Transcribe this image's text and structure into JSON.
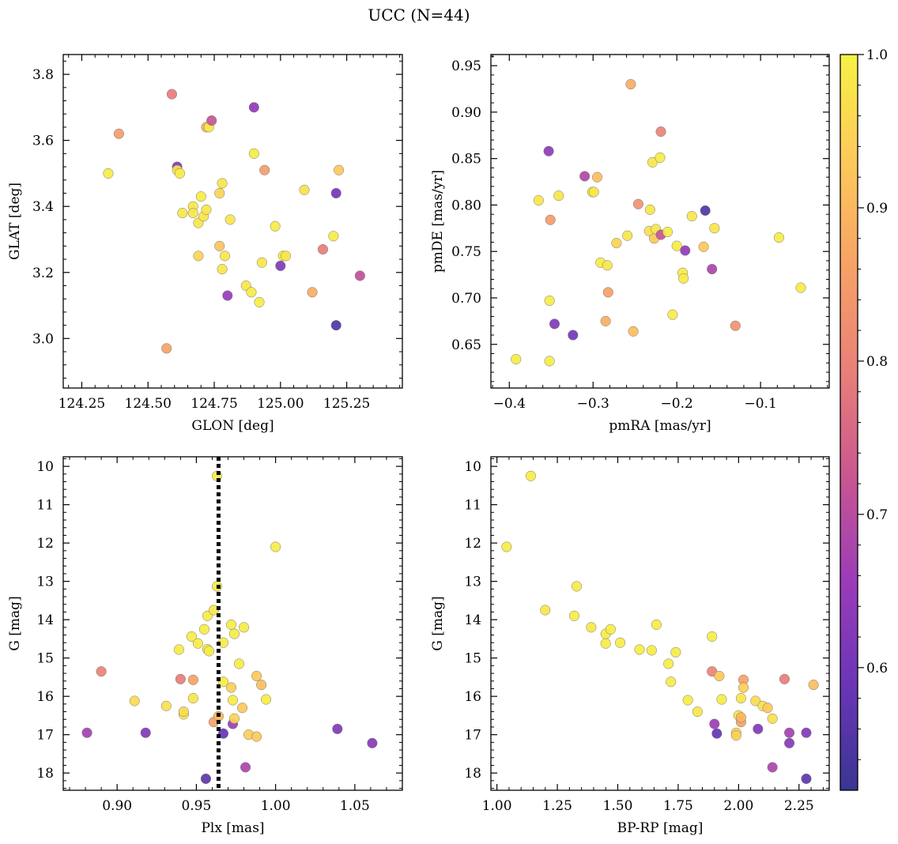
{
  "suptitle": "UCC (N=44)",
  "colorbar": {
    "range": [
      0.52,
      1.0
    ],
    "ticks": [
      0.6,
      0.7,
      0.8,
      0.9,
      1.0
    ],
    "tick_labels": [
      "0.6",
      "0.7",
      "0.8",
      "0.9",
      "1.0"
    ],
    "colormap": "plasma (lightened)",
    "stops": [
      "#3a3591",
      "#6a35b8",
      "#9b3cb8",
      "#c9578f",
      "#e98078",
      "#f7a266",
      "#fdc95a",
      "#f5f244"
    ]
  },
  "chart_data": [
    {
      "type": "scatter",
      "xlabel": "GLON [deg]",
      "ylabel": "GLAT [deg]",
      "xlim": [
        124.18,
        125.46
      ],
      "ylim": [
        2.85,
        3.86
      ],
      "yinvert": false,
      "xticks": [
        124.25,
        124.5,
        124.75,
        125.0,
        125.25
      ],
      "xtick_labels": [
        "124.25",
        "124.50",
        "124.75",
        "125.00",
        "125.25"
      ],
      "yticks": [
        3.0,
        3.2,
        3.4,
        3.6,
        3.8
      ],
      "ytick_labels": [
        "3.0",
        "3.2",
        "3.4",
        "3.6",
        "3.8"
      ],
      "points": [
        {
          "x": 124.35,
          "y": 3.5,
          "c": 0.99
        },
        {
          "x": 124.39,
          "y": 3.62,
          "c": 0.85
        },
        {
          "x": 124.57,
          "y": 2.97,
          "c": 0.86
        },
        {
          "x": 124.59,
          "y": 3.74,
          "c": 0.79
        },
        {
          "x": 124.61,
          "y": 3.52,
          "c": 0.62
        },
        {
          "x": 124.61,
          "y": 3.51,
          "c": 0.98
        },
        {
          "x": 124.62,
          "y": 3.5,
          "c": 0.99
        },
        {
          "x": 124.63,
          "y": 3.38,
          "c": 0.98
        },
        {
          "x": 124.67,
          "y": 3.4,
          "c": 0.98
        },
        {
          "x": 124.67,
          "y": 3.38,
          "c": 0.98
        },
        {
          "x": 124.69,
          "y": 3.35,
          "c": 0.98
        },
        {
          "x": 124.69,
          "y": 3.25,
          "c": 0.95
        },
        {
          "x": 124.7,
          "y": 3.43,
          "c": 0.99
        },
        {
          "x": 124.71,
          "y": 3.37,
          "c": 0.98
        },
        {
          "x": 124.72,
          "y": 3.39,
          "c": 0.98
        },
        {
          "x": 124.72,
          "y": 3.64,
          "c": 0.89
        },
        {
          "x": 124.73,
          "y": 3.64,
          "c": 0.99
        },
        {
          "x": 124.74,
          "y": 3.66,
          "c": 0.72
        },
        {
          "x": 124.77,
          "y": 3.28,
          "c": 0.92
        },
        {
          "x": 124.77,
          "y": 3.44,
          "c": 0.95
        },
        {
          "x": 124.78,
          "y": 3.21,
          "c": 0.98
        },
        {
          "x": 124.78,
          "y": 3.47,
          "c": 0.98
        },
        {
          "x": 124.79,
          "y": 3.25,
          "c": 0.98
        },
        {
          "x": 124.8,
          "y": 3.13,
          "c": 0.65
        },
        {
          "x": 124.81,
          "y": 3.36,
          "c": 0.98
        },
        {
          "x": 124.87,
          "y": 3.16,
          "c": 0.98
        },
        {
          "x": 124.89,
          "y": 3.14,
          "c": 0.99
        },
        {
          "x": 124.9,
          "y": 3.7,
          "c": 0.64
        },
        {
          "x": 124.9,
          "y": 3.56,
          "c": 0.99
        },
        {
          "x": 124.92,
          "y": 3.11,
          "c": 0.99
        },
        {
          "x": 124.93,
          "y": 3.23,
          "c": 0.98
        },
        {
          "x": 124.94,
          "y": 3.51,
          "c": 0.85
        },
        {
          "x": 124.98,
          "y": 3.34,
          "c": 0.99
        },
        {
          "x": 125.0,
          "y": 3.22,
          "c": 0.62
        },
        {
          "x": 125.01,
          "y": 3.25,
          "c": 0.99
        },
        {
          "x": 125.02,
          "y": 3.25,
          "c": 0.98
        },
        {
          "x": 125.09,
          "y": 3.45,
          "c": 0.97
        },
        {
          "x": 125.12,
          "y": 3.14,
          "c": 0.88
        },
        {
          "x": 125.16,
          "y": 3.27,
          "c": 0.79
        },
        {
          "x": 125.2,
          "y": 3.31,
          "c": 0.99
        },
        {
          "x": 125.21,
          "y": 3.44,
          "c": 0.6
        },
        {
          "x": 125.21,
          "y": 3.04,
          "c": 0.55
        },
        {
          "x": 125.22,
          "y": 3.51,
          "c": 0.93
        },
        {
          "x": 125.3,
          "y": 3.19,
          "c": 0.71
        }
      ]
    },
    {
      "type": "scatter",
      "xlabel": "pmRA [mas/yr]",
      "ylabel": "pmDE [mas/yr]",
      "xlim": [
        -0.422,
        -0.018
      ],
      "ylim": [
        0.603,
        0.962
      ],
      "yinvert": false,
      "xticks": [
        -0.4,
        -0.3,
        -0.2,
        -0.1
      ],
      "xtick_labels": [
        "−0.4",
        "−0.3",
        "−0.2",
        "−0.1"
      ],
      "yticks": [
        0.65,
        0.7,
        0.75,
        0.8,
        0.85,
        0.9,
        0.95
      ],
      "ytick_labels": [
        "0.65",
        "0.70",
        "0.75",
        "0.80",
        "0.85",
        "0.90",
        "0.95"
      ],
      "points": [
        {
          "x": -0.392,
          "y": 0.634,
          "c": 0.99
        },
        {
          "x": -0.365,
          "y": 0.805,
          "c": 0.98
        },
        {
          "x": -0.353,
          "y": 0.858,
          "c": 0.64
        },
        {
          "x": -0.352,
          "y": 0.697,
          "c": 0.99
        },
        {
          "x": -0.352,
          "y": 0.632,
          "c": 0.99
        },
        {
          "x": -0.351,
          "y": 0.784,
          "c": 0.85
        },
        {
          "x": -0.346,
          "y": 0.672,
          "c": 0.62
        },
        {
          "x": -0.341,
          "y": 0.81,
          "c": 0.98
        },
        {
          "x": -0.324,
          "y": 0.66,
          "c": 0.6
        },
        {
          "x": -0.31,
          "y": 0.831,
          "c": 0.69
        },
        {
          "x": -0.301,
          "y": 0.814,
          "c": 0.99
        },
        {
          "x": -0.299,
          "y": 0.814,
          "c": 0.98
        },
        {
          "x": -0.295,
          "y": 0.83,
          "c": 0.91
        },
        {
          "x": -0.291,
          "y": 0.738,
          "c": 0.99
        },
        {
          "x": -0.285,
          "y": 0.675,
          "c": 0.88
        },
        {
          "x": -0.283,
          "y": 0.735,
          "c": 0.98
        },
        {
          "x": -0.282,
          "y": 0.706,
          "c": 0.86
        },
        {
          "x": -0.272,
          "y": 0.759,
          "c": 0.95
        },
        {
          "x": -0.259,
          "y": 0.767,
          "c": 0.98
        },
        {
          "x": -0.255,
          "y": 0.93,
          "c": 0.88
        },
        {
          "x": -0.252,
          "y": 0.664,
          "c": 0.91
        },
        {
          "x": -0.246,
          "y": 0.801,
          "c": 0.83
        },
        {
          "x": -0.233,
          "y": 0.772,
          "c": 0.97
        },
        {
          "x": -0.232,
          "y": 0.795,
          "c": 0.98
        },
        {
          "x": -0.229,
          "y": 0.846,
          "c": 0.98
        },
        {
          "x": -0.227,
          "y": 0.764,
          "c": 0.93
        },
        {
          "x": -0.225,
          "y": 0.774,
          "c": 0.98
        },
        {
          "x": -0.22,
          "y": 0.851,
          "c": 0.99
        },
        {
          "x": -0.219,
          "y": 0.879,
          "c": 0.8
        },
        {
          "x": -0.219,
          "y": 0.768,
          "c": 0.72
        },
        {
          "x": -0.211,
          "y": 0.771,
          "c": 0.99
        },
        {
          "x": -0.205,
          "y": 0.682,
          "c": 0.99
        },
        {
          "x": -0.2,
          "y": 0.756,
          "c": 0.99
        },
        {
          "x": -0.193,
          "y": 0.727,
          "c": 0.99
        },
        {
          "x": -0.192,
          "y": 0.721,
          "c": 0.99
        },
        {
          "x": -0.19,
          "y": 0.751,
          "c": 0.64
        },
        {
          "x": -0.182,
          "y": 0.788,
          "c": 0.98
        },
        {
          "x": -0.168,
          "y": 0.755,
          "c": 0.93
        },
        {
          "x": -0.166,
          "y": 0.794,
          "c": 0.55
        },
        {
          "x": -0.158,
          "y": 0.731,
          "c": 0.68
        },
        {
          "x": -0.155,
          "y": 0.775,
          "c": 0.98
        },
        {
          "x": -0.13,
          "y": 0.67,
          "c": 0.83
        },
        {
          "x": -0.078,
          "y": 0.765,
          "c": 0.99
        },
        {
          "x": -0.052,
          "y": 0.711,
          "c": 0.99
        }
      ]
    },
    {
      "type": "scatter",
      "xlabel": "Plx [mas]",
      "ylabel": "G [mag]",
      "xlim": [
        0.866,
        1.08
      ],
      "ylim": [
        9.75,
        18.45
      ],
      "yinvert": true,
      "xticks": [
        0.9,
        0.95,
        1.0,
        1.05
      ],
      "xtick_labels": [
        "0.90",
        "0.95",
        "1.00",
        "1.05"
      ],
      "yticks": [
        10,
        11,
        12,
        13,
        14,
        15,
        16,
        17,
        18
      ],
      "ytick_labels": [
        "10",
        "11",
        "12",
        "13",
        "14",
        "15",
        "16",
        "17",
        "18"
      ],
      "vline": 0.964,
      "points": [
        {
          "x": 0.881,
          "y": 16.95,
          "c": 0.67
        },
        {
          "x": 0.89,
          "y": 15.35,
          "c": 0.8
        },
        {
          "x": 0.911,
          "y": 16.12,
          "c": 0.96
        },
        {
          "x": 0.918,
          "y": 16.95,
          "c": 0.62
        },
        {
          "x": 0.931,
          "y": 16.25,
          "c": 0.97
        },
        {
          "x": 0.939,
          "y": 14.78,
          "c": 0.99
        },
        {
          "x": 0.94,
          "y": 15.55,
          "c": 0.79
        },
        {
          "x": 0.942,
          "y": 16.47,
          "c": 0.98
        },
        {
          "x": 0.942,
          "y": 16.4,
          "c": 0.96
        },
        {
          "x": 0.947,
          "y": 14.44,
          "c": 0.99
        },
        {
          "x": 0.948,
          "y": 15.57,
          "c": 0.86
        },
        {
          "x": 0.948,
          "y": 16.05,
          "c": 0.98
        },
        {
          "x": 0.951,
          "y": 14.62,
          "c": 0.99
        },
        {
          "x": 0.955,
          "y": 14.25,
          "c": 0.99
        },
        {
          "x": 0.957,
          "y": 13.9,
          "c": 0.99
        },
        {
          "x": 0.957,
          "y": 14.77,
          "c": 0.98
        },
        {
          "x": 0.958,
          "y": 14.82,
          "c": 0.99
        },
        {
          "x": 0.956,
          "y": 18.15,
          "c": 0.57
        },
        {
          "x": 0.961,
          "y": 13.75,
          "c": 0.98
        },
        {
          "x": 0.961,
          "y": 16.67,
          "c": 0.86
        },
        {
          "x": 0.963,
          "y": 10.25,
          "c": 0.99
        },
        {
          "x": 0.963,
          "y": 13.13,
          "c": 0.99
        },
        {
          "x": 0.964,
          "y": 16.52,
          "c": 0.9
        },
        {
          "x": 0.967,
          "y": 14.6,
          "c": 0.99
        },
        {
          "x": 0.967,
          "y": 15.62,
          "c": 0.99
        },
        {
          "x": 0.967,
          "y": 16.97,
          "c": 0.58
        },
        {
          "x": 0.972,
          "y": 14.13,
          "c": 0.99
        },
        {
          "x": 0.972,
          "y": 15.77,
          "c": 0.94
        },
        {
          "x": 0.973,
          "y": 16.1,
          "c": 0.99
        },
        {
          "x": 0.973,
          "y": 16.72,
          "c": 0.66
        },
        {
          "x": 0.974,
          "y": 16.58,
          "c": 0.95
        },
        {
          "x": 0.974,
          "y": 14.37,
          "c": 0.99
        },
        {
          "x": 0.977,
          "y": 15.15,
          "c": 0.99
        },
        {
          "x": 0.979,
          "y": 16.3,
          "c": 0.93
        },
        {
          "x": 0.98,
          "y": 14.2,
          "c": 0.99
        },
        {
          "x": 0.981,
          "y": 17.85,
          "c": 0.68
        },
        {
          "x": 0.983,
          "y": 17.0,
          "c": 0.94
        },
        {
          "x": 0.988,
          "y": 15.47,
          "c": 0.93
        },
        {
          "x": 0.988,
          "y": 17.05,
          "c": 0.93
        },
        {
          "x": 0.991,
          "y": 15.7,
          "c": 0.91
        },
        {
          "x": 0.994,
          "y": 16.08,
          "c": 0.99
        },
        {
          "x": 1.0,
          "y": 12.1,
          "c": 0.99
        },
        {
          "x": 1.039,
          "y": 16.85,
          "c": 0.62
        },
        {
          "x": 1.061,
          "y": 17.22,
          "c": 0.63
        }
      ]
    },
    {
      "type": "scatter",
      "xlabel": "BP-RP [mag]",
      "ylabel": "G [mag]",
      "xlim": [
        0.975,
        2.375
      ],
      "ylim": [
        9.75,
        18.45
      ],
      "yinvert": true,
      "xticks": [
        1.0,
        1.25,
        1.5,
        1.75,
        2.0,
        2.25
      ],
      "xtick_labels": [
        "1.00",
        "1.25",
        "1.50",
        "1.75",
        "2.00",
        "2.25"
      ],
      "yticks": [
        10,
        11,
        12,
        13,
        14,
        15,
        16,
        17,
        18
      ],
      "ytick_labels": [
        "10",
        "11",
        "12",
        "13",
        "14",
        "15",
        "16",
        "17",
        "18"
      ],
      "points": [
        {
          "x": 1.04,
          "y": 12.1,
          "c": 0.99
        },
        {
          "x": 1.14,
          "y": 10.25,
          "c": 0.99
        },
        {
          "x": 1.2,
          "y": 13.75,
          "c": 0.98
        },
        {
          "x": 1.32,
          "y": 13.9,
          "c": 0.99
        },
        {
          "x": 1.33,
          "y": 13.13,
          "c": 0.99
        },
        {
          "x": 1.39,
          "y": 14.2,
          "c": 0.98
        },
        {
          "x": 1.45,
          "y": 14.37,
          "c": 0.99
        },
        {
          "x": 1.45,
          "y": 14.62,
          "c": 0.99
        },
        {
          "x": 1.47,
          "y": 14.25,
          "c": 0.99
        },
        {
          "x": 1.51,
          "y": 14.6,
          "c": 0.99
        },
        {
          "x": 1.59,
          "y": 14.78,
          "c": 0.99
        },
        {
          "x": 1.64,
          "y": 14.8,
          "c": 0.99
        },
        {
          "x": 1.66,
          "y": 14.13,
          "c": 0.99
        },
        {
          "x": 1.71,
          "y": 15.15,
          "c": 0.99
        },
        {
          "x": 1.72,
          "y": 15.62,
          "c": 0.99
        },
        {
          "x": 1.74,
          "y": 14.85,
          "c": 0.99
        },
        {
          "x": 1.79,
          "y": 16.1,
          "c": 0.99
        },
        {
          "x": 1.83,
          "y": 16.4,
          "c": 0.98
        },
        {
          "x": 1.89,
          "y": 14.44,
          "c": 0.99
        },
        {
          "x": 1.89,
          "y": 15.35,
          "c": 0.8
        },
        {
          "x": 1.9,
          "y": 16.72,
          "c": 0.66
        },
        {
          "x": 1.91,
          "y": 16.97,
          "c": 0.58
        },
        {
          "x": 1.92,
          "y": 15.47,
          "c": 0.93
        },
        {
          "x": 1.93,
          "y": 16.08,
          "c": 0.99
        },
        {
          "x": 1.99,
          "y": 16.95,
          "c": 0.95
        },
        {
          "x": 1.99,
          "y": 17.02,
          "c": 0.94
        },
        {
          "x": 2.0,
          "y": 16.5,
          "c": 0.98
        },
        {
          "x": 2.01,
          "y": 16.05,
          "c": 0.98
        },
        {
          "x": 2.01,
          "y": 16.67,
          "c": 0.86
        },
        {
          "x": 2.01,
          "y": 16.55,
          "c": 0.9
        },
        {
          "x": 2.02,
          "y": 15.57,
          "c": 0.86
        },
        {
          "x": 2.02,
          "y": 15.77,
          "c": 0.94
        },
        {
          "x": 2.07,
          "y": 16.12,
          "c": 0.96
        },
        {
          "x": 2.08,
          "y": 16.85,
          "c": 0.62
        },
        {
          "x": 2.1,
          "y": 16.25,
          "c": 0.97
        },
        {
          "x": 2.12,
          "y": 16.3,
          "c": 0.93
        },
        {
          "x": 2.14,
          "y": 16.58,
          "c": 0.97
        },
        {
          "x": 2.14,
          "y": 17.85,
          "c": 0.68
        },
        {
          "x": 2.19,
          "y": 15.55,
          "c": 0.79
        },
        {
          "x": 2.21,
          "y": 16.95,
          "c": 0.67
        },
        {
          "x": 2.21,
          "y": 17.22,
          "c": 0.63
        },
        {
          "x": 2.28,
          "y": 16.95,
          "c": 0.62
        },
        {
          "x": 2.28,
          "y": 18.15,
          "c": 0.57
        },
        {
          "x": 2.31,
          "y": 15.7,
          "c": 0.91
        }
      ]
    }
  ]
}
